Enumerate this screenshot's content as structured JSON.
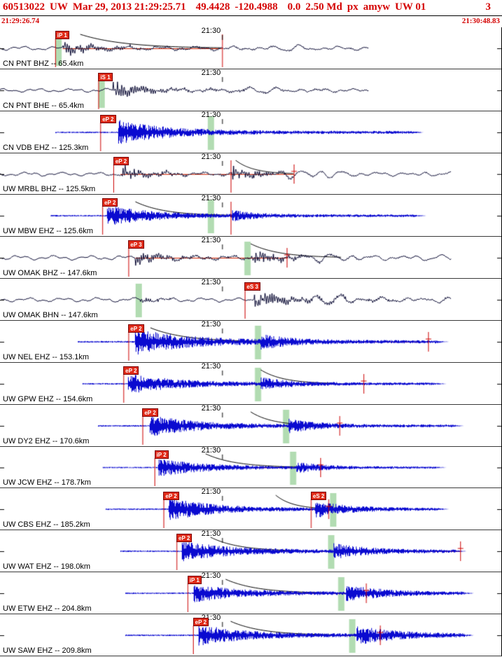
{
  "header": {
    "event_id": "60513022",
    "network": "UW",
    "origin_time": "Mar 29, 2013 21:29:25.71",
    "latitude": "49.4428",
    "longitude": "-120.4988",
    "depth": "0.0",
    "magnitude": "2.50 Md",
    "status": "px",
    "analyst": "amyw",
    "source": "UW 01",
    "version": "3",
    "window_start": "21:29:26.74",
    "window_end": "21:30:48.83"
  },
  "colors": {
    "accent_red": "#d40000",
    "trace_dark": "#101038",
    "trace_blue": "#0a0ad0",
    "band_green": "#b2dcb2",
    "flag_bg": "#e02b18",
    "mark_red": "#cc0000",
    "coda_red": "#cc2200"
  },
  "traces": [
    {
      "network": "CN",
      "station": "PNT",
      "channel": "BHZ",
      "distance": "65.4km",
      "label": "CN PNT BHZ -- 65.4km",
      "time_label": "21:30",
      "tick_x": 0.443,
      "color": "dark",
      "flags": [
        {
          "text": "iP 1",
          "x": 0.11
        }
      ],
      "bands": [
        0.116
      ],
      "marks": [
        {
          "x": 0.443,
          "type": "tall"
        }
      ],
      "coda_line": {
        "from": 0.125,
        "to": 0.443
      },
      "curve": {
        "from": 0.16,
        "to": 0.44
      },
      "wave": {
        "seed": 101,
        "start": 0,
        "end": 0.735,
        "lf": {
          "amp": 2.6,
          "period": 0.07
        },
        "bursts": [
          {
            "x": 0.125,
            "a": 10,
            "tau": 0.05
          },
          {
            "x": 0.125,
            "a": 2.5,
            "tau": 0.45
          }
        ],
        "swells": [
          {
            "c": 0.58,
            "w": 0.1,
            "a": 2.5,
            "T": 0.045
          }
        ]
      }
    },
    {
      "network": "CN",
      "station": "PNT",
      "channel": "BHE",
      "distance": "65.4km",
      "label": "CN PNT BHE -- 65.4km",
      "time_label": "21:30",
      "tick_x": 0.443,
      "color": "dark",
      "flags": [
        {
          "text": "iS 1",
          "x": 0.196
        }
      ],
      "bands": [
        0.202
      ],
      "marks": [],
      "wave": {
        "seed": 102,
        "start": 0,
        "end": 0.735,
        "lf": {
          "amp": 2.4,
          "period": 0.07
        },
        "bursts": [
          {
            "x": 0.225,
            "a": 13,
            "tau": 0.05
          },
          {
            "x": 0.225,
            "a": 2.5,
            "tau": 0.45
          }
        ],
        "swells": [
          {
            "c": 0.55,
            "w": 0.12,
            "a": 2.5,
            "T": 0.05
          }
        ]
      }
    },
    {
      "network": "CN",
      "station": "VDB",
      "channel": "EHZ",
      "distance": "125.3km",
      "label": "CN VDB EHZ -- 125.3km",
      "time_label": "21:30",
      "tick_x": 0.443,
      "color": "blue",
      "flags": [
        {
          "text": "eP 2",
          "x": 0.2
        }
      ],
      "bands": [
        0.42
      ],
      "marks": [],
      "wave": {
        "seed": 103,
        "start": 0.11,
        "end": 0.845,
        "base": 1.1,
        "arr": 0.235,
        "amp": 16,
        "tau": 0.1,
        "coda": 2.0
      }
    },
    {
      "network": "UW",
      "station": "MRBL",
      "channel": "BHZ",
      "distance": "125.5km",
      "label": "UW MRBL BHZ -- 125.5km",
      "time_label": "21:30",
      "tick_x": 0.443,
      "color": "dark",
      "flags": [
        {
          "text": "eP 2",
          "x": 0.226
        }
      ],
      "bands": [],
      "marks": [
        {
          "x": 0.46,
          "type": "tall"
        },
        {
          "x": 0.586,
          "type": "cross"
        }
      ],
      "coda_line": {
        "from": 0.24,
        "to": 0.586
      },
      "curve": {
        "from": 0.47,
        "to": 0.585
      },
      "wave": {
        "seed": 104,
        "start": 0,
        "end": 0.9,
        "lf": {
          "amp": 2.6,
          "period": 0.07
        },
        "bursts": [
          {
            "x": 0.243,
            "a": 11,
            "tau": 0.045
          },
          {
            "x": 0.462,
            "a": 10,
            "tau": 0.055
          },
          {
            "x": 0.243,
            "a": 2,
            "tau": 0.5
          }
        ],
        "swells": [
          {
            "c": 0.62,
            "w": 0.13,
            "a": 4.5,
            "T": 0.04
          },
          {
            "c": 0.84,
            "w": 0.07,
            "a": 2.5,
            "T": 0.05
          }
        ]
      }
    },
    {
      "network": "UW",
      "station": "MBW",
      "channel": "EHZ",
      "distance": "125.6km",
      "label": "UW MBW EHZ -- 125.6km",
      "time_label": "21:30",
      "tick_x": 0.443,
      "color": "blue",
      "flags": [
        {
          "text": "eP 2",
          "x": 0.204
        }
      ],
      "bands": [
        0.42
      ],
      "marks": [
        {
          "x": 0.46,
          "type": "tall"
        }
      ],
      "coda_line": {
        "from": 0.215,
        "to": 0.46
      },
      "curve": {
        "from": 0.27,
        "to": 0.455
      },
      "wave": {
        "seed": 105,
        "start": 0.1,
        "end": 0.85,
        "base": 1.1,
        "arr": 0.212,
        "amp": 14,
        "tau": 0.09,
        "coda": 1.8,
        "s": {
          "x": 0.462,
          "a": 6,
          "tau": 0.05
        }
      }
    },
    {
      "network": "UW",
      "station": "OMAK",
      "channel": "BHZ",
      "distance": "147.6km",
      "label": "UW OMAK BHZ -- 147.6km",
      "time_label": "21:30",
      "tick_x": 0.443,
      "color": "dark",
      "flags": [
        {
          "text": "eP 3",
          "x": 0.256
        }
      ],
      "bands": [
        0.493
      ],
      "marks": [
        {
          "x": 0.572,
          "type": "cross"
        }
      ],
      "coda_line": {
        "from": 0.27,
        "to": 0.572
      },
      "curve": {
        "from": 0.5,
        "to": 0.68
      },
      "wave": {
        "seed": 106,
        "start": 0,
        "end": 0.9,
        "lf": {
          "amp": 3.0,
          "period": 0.07
        },
        "bursts": [
          {
            "x": 0.27,
            "a": 9,
            "tau": 0.05
          },
          {
            "x": 0.5,
            "a": 11,
            "tau": 0.06
          },
          {
            "x": 0.27,
            "a": 2,
            "tau": 0.5
          }
        ],
        "swells": [
          {
            "c": 0.66,
            "w": 0.12,
            "a": 4,
            "T": 0.045
          },
          {
            "c": 0.85,
            "w": 0.06,
            "a": 2.5,
            "T": 0.05
          }
        ]
      }
    },
    {
      "network": "UW",
      "station": "OMAK",
      "channel": "BHN",
      "distance": "147.6km",
      "label": "UW OMAK BHN -- 147.6km",
      "time_label": "21:30",
      "tick_x": 0.443,
      "color": "dark",
      "flags": [
        {
          "text": "eS 3",
          "x": 0.488
        }
      ],
      "bands": [
        0.276
      ],
      "marks": [],
      "wave": {
        "seed": 107,
        "start": 0,
        "end": 0.9,
        "lf": {
          "amp": 2.8,
          "period": 0.07
        },
        "bursts": [
          {
            "x": 0.28,
            "a": 4,
            "tau": 0.05
          },
          {
            "x": 0.505,
            "a": 12,
            "tau": 0.07
          },
          {
            "x": 0.505,
            "a": 3,
            "tau": 0.35
          }
        ],
        "swells": [
          {
            "c": 0.67,
            "w": 0.12,
            "a": 5,
            "T": 0.045
          },
          {
            "c": 0.86,
            "w": 0.06,
            "a": 3,
            "T": 0.05
          }
        ]
      }
    },
    {
      "network": "UW",
      "station": "NEL",
      "channel": "EHZ",
      "distance": "153.1km",
      "label": "UW NEL EHZ -- 153.1km",
      "time_label": "21:30",
      "tick_x": 0.443,
      "color": "blue",
      "flags": [
        {
          "text": "eP 2",
          "x": 0.256
        }
      ],
      "bands": [
        0.514
      ],
      "marks": [
        {
          "x": 0.854,
          "type": "cross"
        }
      ],
      "coda_line": {
        "from": 0.27,
        "to": 0.854
      },
      "curve": {
        "from": 0.3,
        "to": 0.52
      },
      "wave": {
        "seed": 108,
        "start": 0.155,
        "end": 0.895,
        "base": 1.2,
        "arr": 0.268,
        "amp": 17,
        "tau": 0.11,
        "coda": 2.2,
        "s": {
          "x": 0.52,
          "a": 8,
          "tau": 0.06
        }
      }
    },
    {
      "network": "UW",
      "station": "GPW",
      "channel": "EHZ",
      "distance": "154.6km",
      "label": "UW GPW EHZ -- 154.6km",
      "time_label": "21:30",
      "tick_x": 0.443,
      "color": "blue",
      "flags": [
        {
          "text": "eP 2",
          "x": 0.246
        }
      ],
      "bands": [
        0.514
      ],
      "marks": [
        {
          "x": 0.725,
          "type": "cross"
        }
      ],
      "coda_line": {
        "from": 0.26,
        "to": 0.725
      },
      "curve": {
        "from": 0.52,
        "to": 0.665
      },
      "wave": {
        "seed": 109,
        "start": 0.165,
        "end": 0.89,
        "base": 1.1,
        "arr": 0.255,
        "amp": 13,
        "tau": 0.1,
        "coda": 1.8,
        "s": {
          "x": 0.52,
          "a": 7,
          "tau": 0.06
        }
      }
    },
    {
      "network": "UW",
      "station": "DY2",
      "channel": "EHZ",
      "distance": "170.6km",
      "label": "UW DY2 EHZ -- 170.6km",
      "time_label": "21:30",
      "tick_x": 0.443,
      "color": "blue",
      "flags": [
        {
          "text": "eP 2",
          "x": 0.284
        }
      ],
      "bands": [
        0.57
      ],
      "marks": [
        {
          "x": 0.677,
          "type": "cross"
        }
      ],
      "coda_line": {
        "from": 0.3,
        "to": 0.677
      },
      "curve": {
        "from": 0.5,
        "to": 0.64
      },
      "wave": {
        "seed": 110,
        "start": 0.195,
        "end": 0.925,
        "base": 1.1,
        "arr": 0.298,
        "amp": 14,
        "tau": 0.1,
        "coda": 1.8,
        "s": {
          "x": 0.575,
          "a": 8,
          "tau": 0.06
        }
      }
    },
    {
      "network": "UW",
      "station": "JCW",
      "channel": "EHZ",
      "distance": "178.7km",
      "label": "UW JCW EHZ -- 178.7km",
      "time_label": "21:30",
      "tick_x": 0.443,
      "color": "blue",
      "flags": [
        {
          "text": "iP 2",
          "x": 0.308
        }
      ],
      "bands": [
        0.584
      ],
      "marks": [
        {
          "x": 0.639,
          "type": "cross"
        }
      ],
      "coda_line": {
        "from": 0.32,
        "to": 0.639
      },
      "curve": {
        "from": 0.41,
        "to": 0.6
      },
      "wave": {
        "seed": 111,
        "start": 0.205,
        "end": 0.89,
        "base": 1.0,
        "arr": 0.315,
        "amp": 12,
        "tau": 0.09,
        "coda": 1.6,
        "s": {
          "x": 0.59,
          "a": 7,
          "tau": 0.05
        }
      }
    },
    {
      "network": "UW",
      "station": "CBS",
      "channel": "EHZ",
      "distance": "185.2km",
      "label": "UW CBS EHZ -- 185.2km",
      "time_label": "21:30",
      "tick_x": 0.443,
      "color": "blue",
      "flags": [
        {
          "text": "eP 2",
          "x": 0.326
        },
        {
          "text": "eS 2",
          "x": 0.62
        }
      ],
      "bands": [
        0.664
      ],
      "marks": [
        {
          "x": 0.655,
          "type": "cross"
        }
      ],
      "coda_line": {
        "from": 0.34,
        "to": 0.655
      },
      "curve": {
        "from": 0.55,
        "to": 0.66
      },
      "wave": {
        "seed": 112,
        "start": 0.21,
        "end": 0.895,
        "base": 1.1,
        "arr": 0.336,
        "amp": 15,
        "tau": 0.09,
        "coda": 1.8,
        "s": {
          "x": 0.628,
          "a": 11,
          "tau": 0.06
        }
      }
    },
    {
      "network": "UW",
      "station": "WAT",
      "channel": "EHZ",
      "distance": "198.0km",
      "label": "UW WAT EHZ -- 198.0km",
      "time_label": "21:30",
      "tick_x": 0.443,
      "color": "blue",
      "flags": [
        {
          "text": "eP 2",
          "x": 0.352
        }
      ],
      "bands": [
        0.66
      ],
      "marks": [
        {
          "x": 0.918,
          "type": "cross"
        }
      ],
      "coda_line": {
        "from": 0.365,
        "to": 0.918
      },
      "curve": {
        "from": 0.42,
        "to": 0.6
      },
      "wave": {
        "seed": 113,
        "start": 0.24,
        "end": 0.93,
        "base": 1.1,
        "arr": 0.362,
        "amp": 13,
        "tau": 0.1,
        "coda": 2.0,
        "s": {
          "x": 0.665,
          "a": 9,
          "tau": 0.07
        }
      }
    },
    {
      "network": "UW",
      "station": "ETW",
      "channel": "EHZ",
      "distance": "204.8km",
      "label": "UW ETW EHZ -- 204.8km",
      "time_label": "21:30",
      "tick_x": 0.443,
      "color": "blue",
      "flags": [
        {
          "text": "iP 1",
          "x": 0.374
        }
      ],
      "bands": [
        0.68
      ],
      "marks": [
        {
          "x": 0.73,
          "type": "cross"
        }
      ],
      "coda_line": {
        "from": 0.385,
        "to": 0.73
      },
      "curve": {
        "from": 0.45,
        "to": 0.65
      },
      "wave": {
        "seed": 114,
        "start": 0.25,
        "end": 0.945,
        "base": 1.1,
        "arr": 0.385,
        "amp": 12,
        "tau": 0.09,
        "coda": 2.0,
        "s": {
          "x": 0.69,
          "a": 11,
          "tau": 0.07
        }
      }
    },
    {
      "network": "UW",
      "station": "SAW",
      "channel": "EHZ",
      "distance": "209.8km",
      "label": "UW SAW EHZ -- 209.8km",
      "time_label": "21:30",
      "tick_x": 0.443,
      "color": "blue",
      "flags": [
        {
          "text": "eP 2",
          "x": 0.385
        }
      ],
      "bands": [
        0.702
      ],
      "marks": [
        {
          "x": 0.758,
          "type": "cross"
        }
      ],
      "coda_line": {
        "from": 0.4,
        "to": 0.758
      },
      "curve": {
        "from": 0.46,
        "to": 0.66
      },
      "wave": {
        "seed": 115,
        "start": 0.25,
        "end": 0.945,
        "base": 1.1,
        "arr": 0.395,
        "amp": 14,
        "tau": 0.09,
        "coda": 2.2,
        "s": {
          "x": 0.71,
          "a": 12,
          "tau": 0.08
        }
      }
    }
  ]
}
